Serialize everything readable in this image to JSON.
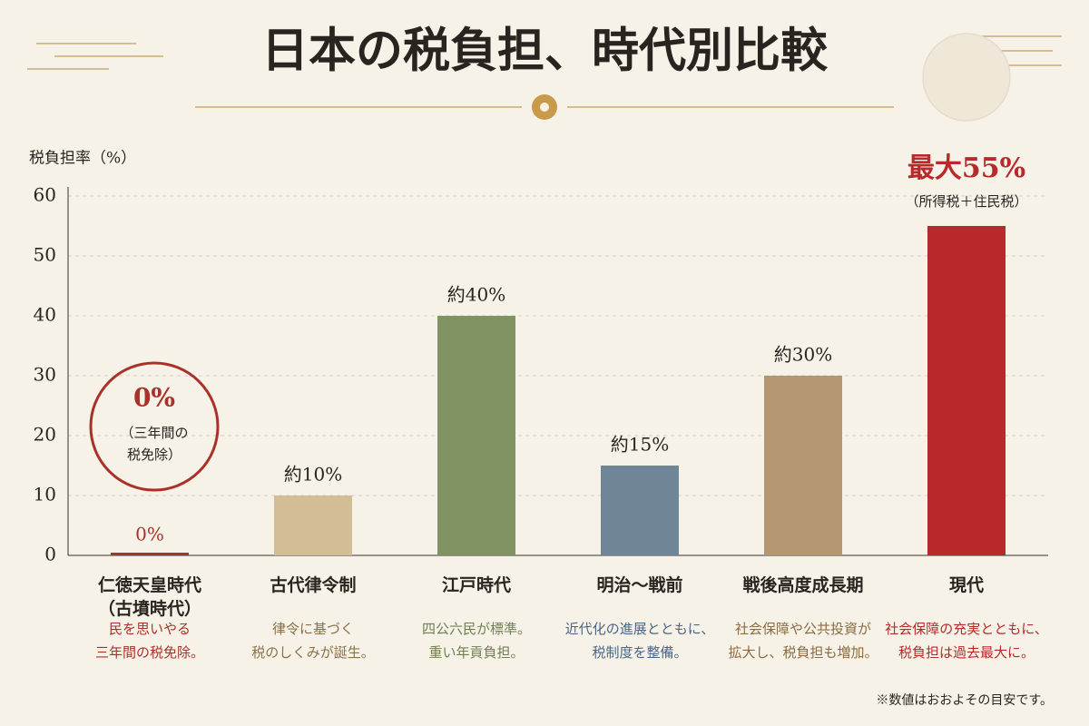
{
  "chart_data": {
    "type": "bar",
    "title": "日本の税負担、時代別比較",
    "y_label": "税負担率（%）",
    "categories": [
      "仁徳天皇時代",
      "古代律令制",
      "江戸時代",
      "明治〜戦前",
      "戦後高度成長期",
      "現代"
    ],
    "category_sublabels": [
      "（古墳時代）",
      null,
      null,
      null,
      null,
      null
    ],
    "descriptions": [
      [
        "民を思いやる",
        "三年間の税免除。"
      ],
      [
        "律令に基づく",
        "税のしくみが誕生。"
      ],
      [
        "四公六民が標準。",
        "重い年貢負担。"
      ],
      [
        "近代化の進展とともに、",
        "税制度を整備。"
      ],
      [
        "社会保障や公共投資が",
        "拡大し、税負担も増加。"
      ],
      [
        "社会保障の充実とともに、",
        "税負担は過去最大に。"
      ]
    ],
    "values": [
      0,
      10,
      40,
      15,
      30,
      55
    ],
    "value_labels": [
      "0%",
      "約10%",
      "約40%",
      "約15%",
      "約30%",
      "最大55%"
    ],
    "colors": [
      "#a8322a",
      "#d3bd96",
      "#7f9462",
      "#6f8698",
      "#b49770",
      "#b8292b"
    ],
    "description_colors": [
      "#a8322a",
      "#8b7049",
      "#6f7f52",
      "#4b6684",
      "#8b6b41",
      "#b8292b"
    ],
    "ylim": [
      0,
      60
    ],
    "yticks": [
      0,
      10,
      20,
      30,
      40,
      50,
      60
    ],
    "grid": true,
    "annotations": {
      "max_note": "（所得税＋住民税）",
      "circle_value": "0%",
      "circle_note": [
        "（三年間の",
        "税免除）"
      ]
    },
    "footnote": "※数値はおおよその目安です。"
  }
}
